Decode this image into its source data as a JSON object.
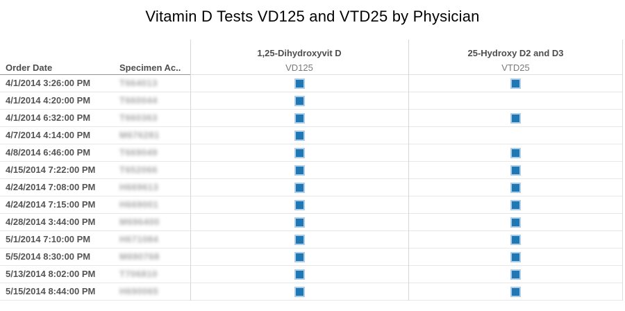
{
  "chart_data": {
    "type": "table",
    "title": "Vitamin D Tests VD125 and VTD25 by Physician",
    "row_headers": [
      "Order Date",
      "Specimen Ac.."
    ],
    "columns": [
      {
        "group": "1,25-Dihydroxyvit D",
        "measure": "VD125"
      },
      {
        "group": "25-Hydroxy D2 and D3",
        "measure": "VTD25"
      }
    ],
    "mark": {
      "shape": "square",
      "color": "#1f77b4",
      "halo": "#aecde8"
    },
    "specimen_values_redaction": "blurred in source image; strings approximate",
    "rows": [
      {
        "order_date": "4/1/2014 3:26:00 PM",
        "specimen_accession": "T664013",
        "VD125": true,
        "VTD25": true
      },
      {
        "order_date": "4/1/2014 4:20:00 PM",
        "specimen_accession": "T660044",
        "VD125": true,
        "VTD25": false
      },
      {
        "order_date": "4/1/2014 6:32:00 PM",
        "specimen_accession": "T660363",
        "VD125": true,
        "VTD25": true
      },
      {
        "order_date": "4/7/2014 4:14:00 PM",
        "specimen_accession": "M676281",
        "VD125": true,
        "VTD25": false
      },
      {
        "order_date": "4/8/2014 6:46:00 PM",
        "specimen_accession": "T669049",
        "VD125": true,
        "VTD25": true
      },
      {
        "order_date": "4/15/2014 7:22:00 PM",
        "specimen_accession": "T652066",
        "VD125": true,
        "VTD25": true
      },
      {
        "order_date": "4/24/2014 7:08:00 PM",
        "specimen_accession": "H669613",
        "VD125": true,
        "VTD25": true
      },
      {
        "order_date": "4/24/2014 7:15:00 PM",
        "specimen_accession": "H669001",
        "VD125": true,
        "VTD25": true
      },
      {
        "order_date": "4/28/2014 3:44:00 PM",
        "specimen_accession": "M696400",
        "VD125": true,
        "VTD25": true
      },
      {
        "order_date": "5/1/2014 7:10:00 PM",
        "specimen_accession": "H671084",
        "VD125": true,
        "VTD25": true
      },
      {
        "order_date": "5/5/2014 8:30:00 PM",
        "specimen_accession": "M690768",
        "VD125": true,
        "VTD25": true
      },
      {
        "order_date": "5/13/2014 8:02:00 PM",
        "specimen_accession": "T706810",
        "VD125": true,
        "VTD25": true
      },
      {
        "order_date": "5/15/2014 8:44:00 PM",
        "specimen_accession": "H690065",
        "VD125": true,
        "VTD25": true
      }
    ]
  }
}
